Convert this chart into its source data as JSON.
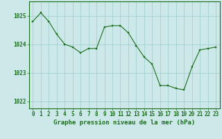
{
  "x": [
    0,
    1,
    2,
    3,
    4,
    5,
    6,
    7,
    8,
    9,
    10,
    11,
    12,
    13,
    14,
    15,
    16,
    17,
    18,
    19,
    20,
    21,
    22,
    23
  ],
  "y": [
    1024.8,
    1025.1,
    1024.8,
    1024.35,
    1024.0,
    1023.9,
    1023.7,
    1023.85,
    1023.85,
    1024.6,
    1024.65,
    1024.65,
    1024.4,
    1023.95,
    1023.55,
    1023.3,
    1022.55,
    1022.55,
    1022.45,
    1022.4,
    1023.2,
    1023.8,
    1023.85,
    1023.9
  ],
  "line_color": "#1a6e1a",
  "marker_color": "#1a6e1a",
  "bg_color": "#cce8e8",
  "grid_color": "#99cccc",
  "axis_color": "#1a6e1a",
  "xlabel": "Graphe pression niveau de la mer (hPa)",
  "xlabel_fontsize": 6.5,
  "tick_fontsize": 5.5,
  "yticks": [
    1022,
    1023,
    1024,
    1025
  ],
  "ylim": [
    1021.75,
    1025.5
  ],
  "xlim": [
    -0.5,
    23.5
  ]
}
